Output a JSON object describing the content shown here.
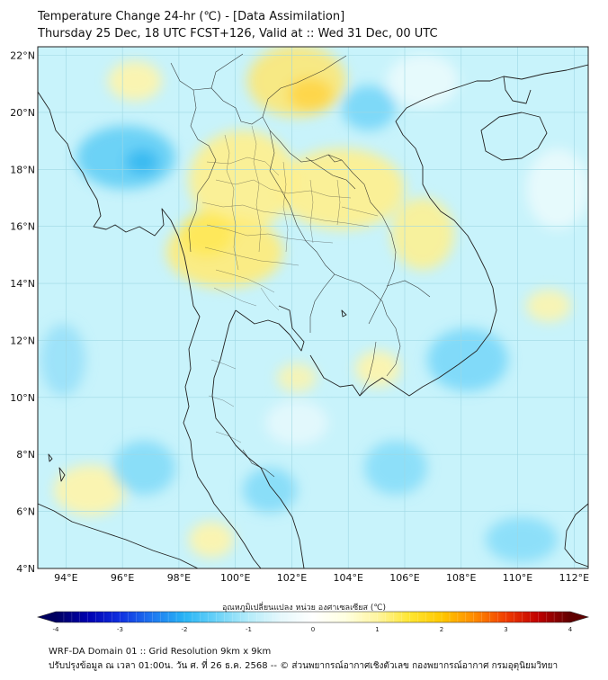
{
  "header": {
    "title_line1": "Temperature Change 24-hr (℃) - [Data Assimilation]",
    "title_line2": "Thursday 25 Dec, 18 UTC FCST+126, Valid at :: Wed 31 Dec, 00 UTC"
  },
  "map": {
    "lat_labels": [
      "22°N",
      "20°N",
      "18°N",
      "16°N",
      "14°N",
      "12°N",
      "10°N",
      "8°N",
      "6°N",
      "4°N"
    ],
    "lon_labels": [
      "94°E",
      "96°E",
      "98°E",
      "100°E",
      "102°E",
      "104°E",
      "106°E",
      "108°E",
      "110°E",
      "112°E"
    ],
    "lat_values": [
      22,
      20,
      18,
      16,
      14,
      12,
      10,
      8,
      6,
      4
    ],
    "lon_values": [
      94,
      96,
      98,
      100,
      102,
      104,
      106,
      108,
      110,
      112
    ],
    "lon_range": [
      93,
      112.5
    ],
    "lat_range": [
      4,
      22.3
    ],
    "background_color": "#c8f3fb",
    "coast_color": "#222222",
    "grid_color": "#9ed8e4"
  },
  "colorbar": {
    "title": "อุณหภูมิเปลี่ยนแปลง หน่วย องศาเซลเซียส (℃)",
    "tick_labels": [
      "-4",
      "-3",
      "-2",
      "-1",
      "0",
      "1",
      "2",
      "3",
      "4"
    ],
    "tick_values": [
      -4,
      -3,
      -2,
      -1,
      0,
      1,
      2,
      3,
      4
    ],
    "range": [
      -4,
      4
    ],
    "colors": [
      "#000060",
      "#0000b0",
      "#1030e0",
      "#1e78f0",
      "#28b4f5",
      "#6ad2f8",
      "#b4ecfa",
      "#e6f8fc",
      "#ffffff",
      "#ffffe0",
      "#fff5a0",
      "#ffe632",
      "#ffc800",
      "#ff8c00",
      "#f03c00",
      "#c00000",
      "#600000"
    ]
  },
  "footer": {
    "line1": "WRF-DA Domain 01 :: Grid Resolution 9km x 9km",
    "line2": "ปรับปรุงข้อมูล ณ เวลา 01:00น. วัน ศ. ที่ 26 ธ.ค. 2568 -- © ส่วนพยากรณ์อากาศเชิงตัวเลข กองพยากรณ์อากาศ กรมอุตุนิยมวิทยา"
  }
}
